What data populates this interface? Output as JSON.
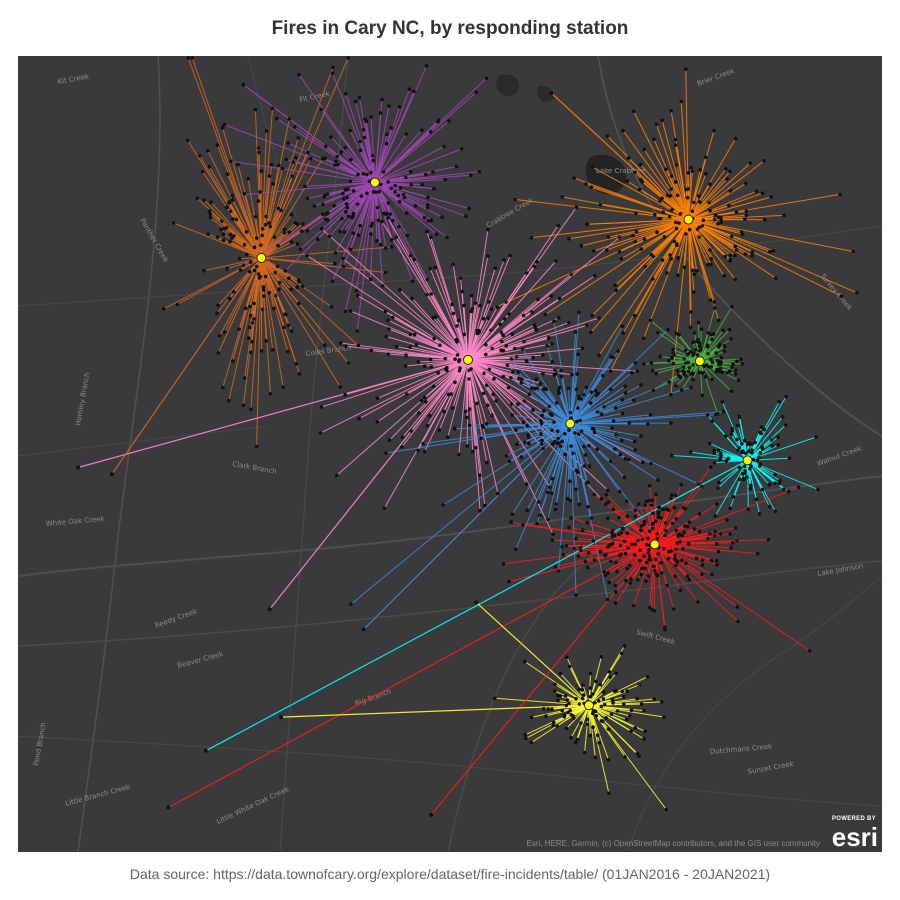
{
  "title": "Fires in Cary NC, by responding station",
  "source": "Data source: https://data.townofcary.org/explore/dataset/fire-incidents/table/ (01JAN2016 - 20JAN2021)",
  "attribution": "Esri, HERE, Garmin, (c) OpenStreetMap contributors, and the GIS user community",
  "esri": {
    "powered_by": "POWERED BY",
    "wordmark": "esri"
  },
  "map_labels": [
    "Crabtree Creek",
    "Fit Creek",
    "Panther Creek",
    "Reedy Creek",
    "Lake Crabtree",
    "Coles Branch",
    "Clark Branch",
    "White Oak Creek",
    "Kit Creek",
    "Swift Creek",
    "Beaver Creek",
    "Big Branch",
    "Little Branch Creek",
    "Walnut Creek",
    "Dutchmans Creek",
    "Hominy Branch",
    "Sunset Creek",
    "Pond Branch",
    "Lake Johnson",
    "Brier Creek",
    "Turkey Creek",
    "Little White Oak Creek"
  ],
  "colors": {
    "map_background": "#3a3a3c",
    "station_marker": "#ffff00",
    "incident_point": "#111111"
  },
  "stations": [
    {
      "id": "station-orange-west",
      "color": "#d2691e",
      "center": [
        -78.8652,
        35.8381
      ],
      "count": 170,
      "spread": [
        62,
        118
      ],
      "seed": 11
    },
    {
      "id": "station-purple",
      "color": "#a046b4",
      "center": [
        -78.835,
        35.8605
      ],
      "count": 170,
      "spread": [
        72,
        78
      ],
      "seed": 23
    },
    {
      "id": "station-orange-east",
      "color": "#ff8000",
      "center": [
        -78.7515,
        35.8495
      ],
      "count": 175,
      "spread": [
        92,
        82
      ],
      "seed": 37
    },
    {
      "id": "station-pink",
      "color": "#ff88c8",
      "center": [
        -78.8102,
        35.8079
      ],
      "count": 210,
      "spread": [
        95,
        98
      ],
      "seed": 41
    },
    {
      "id": "station-green",
      "color": "#46b43c",
      "center": [
        -78.7485,
        35.8075
      ],
      "count": 110,
      "spread": [
        40,
        28
      ],
      "seed": 53
    },
    {
      "id": "station-blue",
      "color": "#3c8cdc",
      "center": [
        -78.783,
        35.789
      ],
      "count": 170,
      "spread": [
        72,
        72
      ],
      "seed": 67
    },
    {
      "id": "station-cyan",
      "color": "#00ffff",
      "center": [
        -78.7358,
        35.7781
      ],
      "count": 95,
      "spread": [
        34,
        40
      ],
      "seed": 71
    },
    {
      "id": "station-red",
      "color": "#ff1a1a",
      "center": [
        -78.7605,
        35.7532
      ],
      "count": 215,
      "spread": [
        72,
        48
      ],
      "seed": 83
    },
    {
      "id": "station-yellow",
      "color": "#ffff33",
      "center": [
        -78.778,
        35.7055
      ],
      "count": 115,
      "spread": [
        58,
        42
      ],
      "seed": 97
    }
  ],
  "far_incidents": [
    {
      "station": "station-pink",
      "point": [
        -78.914,
        35.776
      ]
    },
    {
      "station": "station-pink",
      "point": [
        -78.863,
        35.734
      ]
    },
    {
      "station": "station-orange-west",
      "point": [
        -78.905,
        35.774
      ]
    },
    {
      "station": "station-blue",
      "point": [
        -78.838,
        35.728
      ]
    },
    {
      "station": "station-cyan",
      "point": [
        -78.88,
        35.692
      ]
    },
    {
      "station": "station-red",
      "point": [
        -78.89,
        35.6752
      ]
    },
    {
      "station": "station-red",
      "point": [
        -78.82,
        35.673
      ]
    },
    {
      "station": "station-yellow",
      "point": [
        -78.86,
        35.702
      ]
    },
    {
      "station": "station-yellow",
      "point": [
        -78.808,
        35.736
      ]
    },
    {
      "station": "station-purple",
      "point": [
        -78.87,
        35.8895
      ]
    },
    {
      "station": "station-orange-east",
      "point": [
        -78.788,
        35.887
      ]
    }
  ]
}
